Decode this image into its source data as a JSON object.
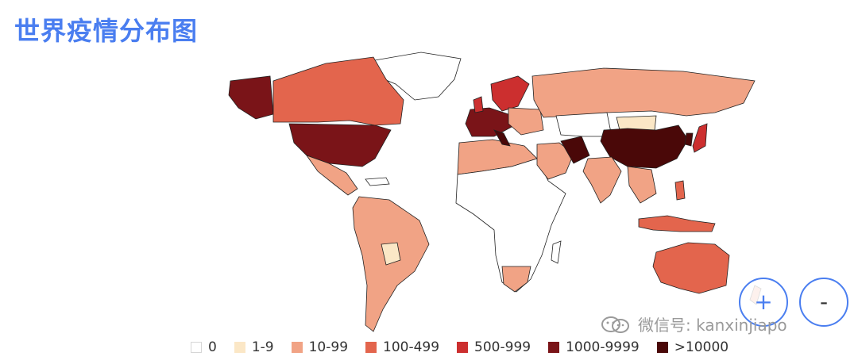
{
  "title": "世界疫情分布图",
  "zoom": {
    "in_label": "+",
    "out_label": "-"
  },
  "watermark": {
    "label": "微信号: kanxinjiapo",
    "icon": "wechat-icon"
  },
  "legend": [
    {
      "label": "0",
      "color": "#ffffff"
    },
    {
      "label": "1-9",
      "color": "#fbe7c6"
    },
    {
      "label": "10-99",
      "color": "#f1a385"
    },
    {
      "label": "100-499",
      "color": "#e3654d"
    },
    {
      "label": "500-999",
      "color": "#cc2f2f"
    },
    {
      "label": "1000-9999",
      "color": "#7a1418"
    },
    {
      "label": ">10000",
      "color": "#4a0808"
    }
  ]
}
